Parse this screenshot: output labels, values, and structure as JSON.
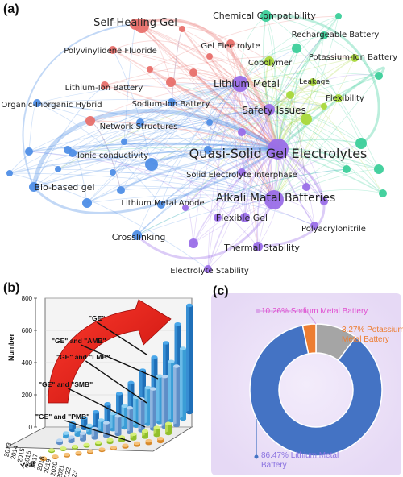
{
  "panels": {
    "a": "(a)",
    "b": "(b)",
    "c": "(c)"
  },
  "colors": {
    "red": "#e8706c",
    "green": "#3ccf9a",
    "yellowgreen": "#a9d83a",
    "purple": "#9a6ee8",
    "blue": "#4f8ee6",
    "pie_lmb": "#4473c4",
    "pie_pmb": "#ed7d31",
    "pie_smb": "#a5a5a5",
    "pie_bg": "#ece2f7"
  },
  "network": {
    "keywords": [
      {
        "label": "Self-Healing Gel",
        "color": "#e8706c",
        "size": 13,
        "node": 1
      },
      {
        "label": "Chemical Compatibility",
        "color": "#3ccf9a",
        "size": 11,
        "node": 1
      },
      {
        "label": "Rechargeable Battery",
        "color": "#3ccf9a",
        "size": 10,
        "node": 1
      },
      {
        "label": "Gel Electrolyte",
        "color": "#e8706c",
        "size": 10,
        "node": 1
      },
      {
        "label": "Polyvinylidene Fluoride",
        "color": "#e8706c",
        "size": 10,
        "node": 1
      },
      {
        "label": "Copolymer",
        "color": "#a9d83a",
        "size": 10,
        "node": 1
      },
      {
        "label": "Potassium-Ion Battery",
        "color": "#a9d83a",
        "size": 10,
        "node": 1
      },
      {
        "label": "Lithium Metal",
        "color": "#9a6ee8",
        "size": 12,
        "node": 1
      },
      {
        "label": "Leakage",
        "color": "#a9d83a",
        "size": 9,
        "node": 1
      },
      {
        "label": "Lithium-Ion Battery",
        "color": "#e8706c",
        "size": 10,
        "node": 1
      },
      {
        "label": "Flexibility",
        "color": "#a9d83a",
        "size": 10,
        "node": 1
      },
      {
        "label": "Organic-Inorganic Hybrid",
        "color": "#4f8ee6",
        "size": 10,
        "node": 1
      },
      {
        "label": "Sodium-Ion Battery",
        "color": "#4f8ee6",
        "size": 10,
        "node": 1
      },
      {
        "label": "Safety Issues",
        "color": "#9a6ee8",
        "size": 12,
        "node": 1
      },
      {
        "label": "Network Structures",
        "color": "#4f8ee6",
        "size": 10,
        "node": 1
      },
      {
        "label": "Ionic conductivity",
        "color": "#4f8ee6",
        "size": 10,
        "node": 1
      },
      {
        "label": "Quasi-Solid Gel Electrolytes",
        "color": "#9a6ee8",
        "size": 16,
        "node": 1
      },
      {
        "label": "Solid Electrolyte Interphase",
        "color": "#9a6ee8",
        "size": 10,
        "node": 1
      },
      {
        "label": "Bio-based gel",
        "color": "#4f8ee6",
        "size": 11,
        "node": 1
      },
      {
        "label": "Alkali Matal Batteries",
        "color": "#9a6ee8",
        "size": 14,
        "node": 1
      },
      {
        "label": "Lithium Metal Anode",
        "color": "#4f8ee6",
        "size": 10,
        "node": 1
      },
      {
        "label": "Flexible Gel",
        "color": "#9a6ee8",
        "size": 11,
        "node": 1
      },
      {
        "label": "Crosslinking",
        "color": "#4f8ee6",
        "size": 11,
        "node": 1
      },
      {
        "label": "Polyacrylonitrile",
        "color": "#9a6ee8",
        "size": 10,
        "node": 1
      },
      {
        "label": "Thermal Stability",
        "color": "#9a6ee8",
        "size": 11,
        "node": 1
      },
      {
        "label": "Electrolyte Stability",
        "color": "#9a6ee8",
        "size": 10,
        "node": 1
      }
    ]
  },
  "chart_data": [
    {
      "type": "bar",
      "panel": "(b)",
      "categories": [
        "2013",
        "2014",
        "2015",
        "2016",
        "2017",
        "2018",
        "2019",
        "2020",
        "2021",
        "2022",
        "2023"
      ],
      "series": [
        {
          "name": "\"GE\"",
          "values": [
            50,
            75,
            105,
            150,
            210,
            275,
            350,
            430,
            520,
            640,
            760
          ]
        },
        {
          "name": "\"GE\" and \"AMB\"",
          "values": [
            25,
            38,
            55,
            80,
            115,
            155,
            205,
            260,
            330,
            420,
            500
          ]
        },
        {
          "name": "\"GE\" and \"LMB\"",
          "values": [
            20,
            30,
            45,
            65,
            95,
            130,
            175,
            225,
            285,
            360,
            420
          ]
        },
        {
          "name": "\"GE\" and \"SMB\"",
          "values": [
            2,
            3,
            5,
            8,
            12,
            18,
            25,
            33,
            42,
            55,
            70
          ]
        },
        {
          "name": "\"GE\" and \"PMB\"",
          "values": [
            1,
            1,
            2,
            3,
            4,
            6,
            8,
            11,
            14,
            18,
            22
          ]
        }
      ],
      "ylabel": "Number",
      "xlabel": "Year",
      "ylim": [
        0,
        800
      ],
      "yticks": [
        0,
        200,
        400,
        600,
        800
      ]
    },
    {
      "type": "pie",
      "panel": "(c)",
      "slices": [
        {
          "label": "Lithium Metal Battery",
          "value": 86.47,
          "text": "86.47% Lithium Metal Battery",
          "color": "#4473c4"
        },
        {
          "label": "Potassium Metal Battery",
          "value": 3.27,
          "text": "3.27% Potassium Metal Battery",
          "color": "#ed7d31"
        },
        {
          "label": "Sodium Metal Battery",
          "value": 10.26,
          "text": "10.26% Sodium Metal Battery",
          "color": "#a5a5a5"
        }
      ]
    }
  ]
}
